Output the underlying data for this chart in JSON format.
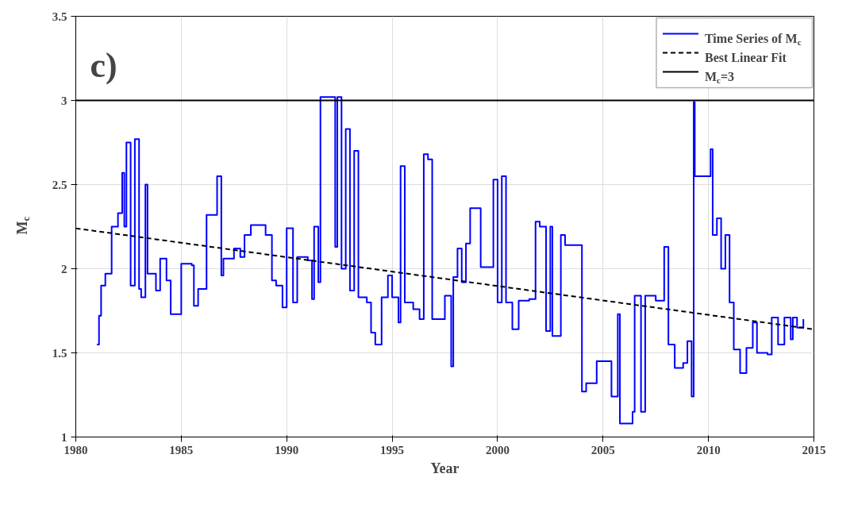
{
  "chart_data": {
    "type": "step",
    "xlabel": "Year",
    "ylabel": "M$_{c}$",
    "annotations": [
      "c)"
    ],
    "xlim": [
      1980,
      2015
    ],
    "ylim": [
      1,
      3.5
    ],
    "xticks": [
      1980,
      1985,
      1990,
      1995,
      2000,
      2005,
      2010,
      2015
    ],
    "yticks": [
      1,
      1.5,
      2,
      2.5,
      3,
      3.5
    ],
    "grid": true,
    "legend": "top right",
    "series": [
      {
        "name": "Time Series of M$_{c}$",
        "color": "#0000ff",
        "x": [
          1981.0,
          1981.1,
          1981.2,
          1981.4,
          1981.7,
          1982.0,
          1982.2,
          1982.3,
          1982.4,
          1982.6,
          1982.8,
          1983.0,
          1983.1,
          1983.3,
          1983.4,
          1983.8,
          1984.0,
          1984.3,
          1984.5,
          1985.0,
          1985.5,
          1985.6,
          1985.8,
          1986.2,
          1986.7,
          1986.9,
          1987.0,
          1987.5,
          1987.8,
          1988.0,
          1988.3,
          1989.0,
          1989.3,
          1989.5,
          1989.8,
          1990.0,
          1990.3,
          1990.5,
          1991.0,
          1991.2,
          1991.3,
          1991.5,
          1991.6,
          1992.3,
          1992.4,
          1992.6,
          1992.8,
          1993.0,
          1993.2,
          1993.4,
          1993.8,
          1994.0,
          1994.2,
          1994.5,
          1994.8,
          1995.0,
          1995.3,
          1995.4,
          1995.6,
          1996.0,
          1996.3,
          1996.5,
          1996.7,
          1996.9,
          1997.5,
          1997.8,
          1997.9,
          1998.1,
          1998.3,
          1998.5,
          1998.7,
          1999.2,
          1999.8,
          2000.0,
          2000.2,
          2000.4,
          2000.7,
          2001.0,
          2001.5,
          2001.8,
          2002.0,
          2002.3,
          2002.5,
          2002.6,
          2003.0,
          2003.2,
          2004.0,
          2004.2,
          2004.7,
          2005.4,
          2005.7,
          2005.8,
          2006.4,
          2006.5,
          2006.8,
          2007.0,
          2007.5,
          2007.9,
          2008.1,
          2008.4,
          2008.8,
          2009.0,
          2009.2,
          2009.3,
          2009.35,
          2010.1,
          2010.2,
          2010.4,
          2010.6,
          2010.8,
          2011.0,
          2011.2,
          2011.5,
          2011.8,
          2012.1,
          2012.3,
          2012.8,
          2013.0,
          2013.3,
          2013.6,
          2013.9,
          2014.0,
          2014.2,
          2014.5
        ],
        "values": [
          1.55,
          1.72,
          1.9,
          1.97,
          2.25,
          2.33,
          2.57,
          2.25,
          2.75,
          1.9,
          2.77,
          1.88,
          1.83,
          2.5,
          1.97,
          1.87,
          2.06,
          1.93,
          1.73,
          2.03,
          2.02,
          1.78,
          1.88,
          2.32,
          2.55,
          1.96,
          2.06,
          2.12,
          2.07,
          2.2,
          2.26,
          2.2,
          1.93,
          1.9,
          1.77,
          2.24,
          1.8,
          2.07,
          2.05,
          1.82,
          2.25,
          1.92,
          3.02,
          2.13,
          3.02,
          2.0,
          2.83,
          1.87,
          2.7,
          1.83,
          1.8,
          1.62,
          1.55,
          1.83,
          1.96,
          1.83,
          1.68,
          2.61,
          1.8,
          1.76,
          1.7,
          2.68,
          2.65,
          1.7,
          1.84,
          1.42,
          1.95,
          2.12,
          1.92,
          2.15,
          2.36,
          2.01,
          2.53,
          1.8,
          2.55,
          1.8,
          1.64,
          1.81,
          1.82,
          2.28,
          2.25,
          1.63,
          2.25,
          1.6,
          2.2,
          2.14,
          1.27,
          1.32,
          1.45,
          1.24,
          1.73,
          1.08,
          1.15,
          1.84,
          1.15,
          1.84,
          1.81,
          2.13,
          1.55,
          1.41,
          1.44,
          1.57,
          1.24,
          2.99,
          2.55,
          2.71,
          2.2,
          2.3,
          2.0,
          2.2,
          1.8,
          1.52,
          1.38,
          1.53,
          1.68,
          1.5,
          1.49,
          1.71,
          1.55,
          1.71,
          1.58,
          1.71,
          1.65,
          1.7
        ]
      },
      {
        "name": "Best Linear Fit",
        "color": "#000000",
        "type": "line",
        "line_style": "dashed",
        "x": [
          1980,
          2015
        ],
        "values": [
          2.24,
          1.64
        ]
      }
    ],
    "ref_lines": [
      {
        "axis": "y",
        "value": 3,
        "label": "M$_{c}$=3",
        "color": "#000000"
      }
    ]
  }
}
